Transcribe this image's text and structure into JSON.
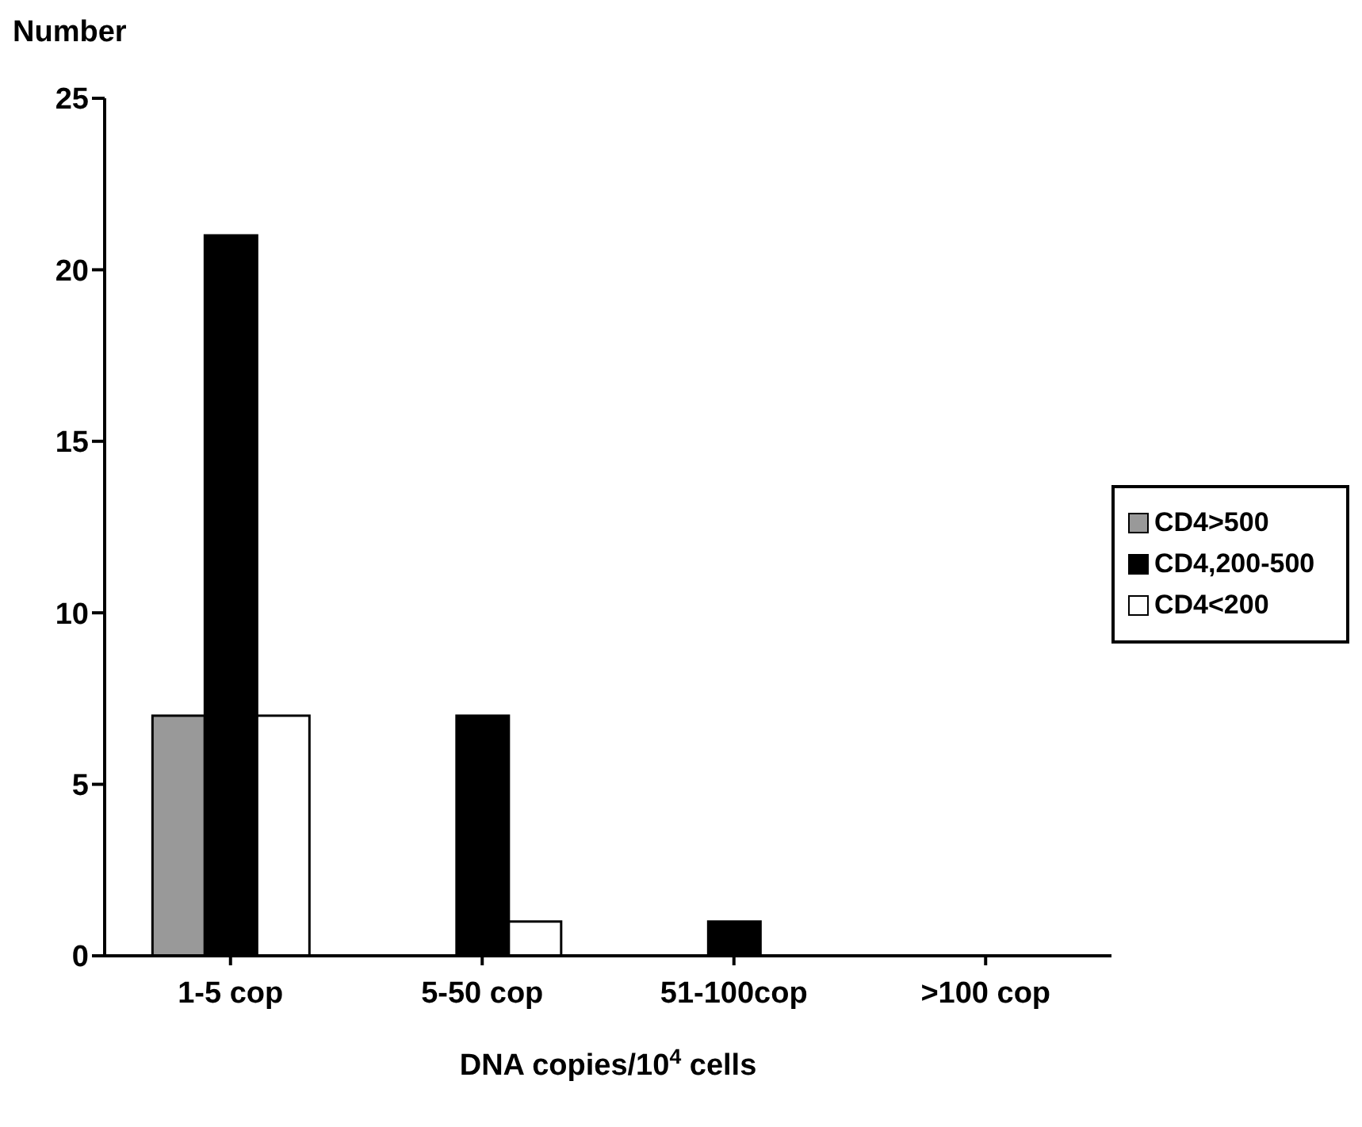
{
  "chart_data": {
    "type": "bar",
    "ylabel": "Number",
    "xlabel": "DNA copies/10$^{4}$ cells",
    "categories": [
      "1-5 cop",
      "5-50 cop",
      "51-100cop",
      ">100 cop"
    ],
    "series": [
      {
        "name": "CD4>500",
        "color": "#999999",
        "values": [
          7,
          0,
          0,
          0
        ]
      },
      {
        "name": "CD4,200-500",
        "color": "#000000",
        "values": [
          21,
          7,
          1,
          0
        ]
      },
      {
        "name": "CD4<200",
        "color": "#ffffff",
        "values": [
          7,
          1,
          0,
          0
        ]
      }
    ],
    "ylim": [
      0,
      25
    ],
    "yticks": [
      0,
      5,
      10,
      15,
      20,
      25
    ],
    "grid": false,
    "legend": "right"
  }
}
